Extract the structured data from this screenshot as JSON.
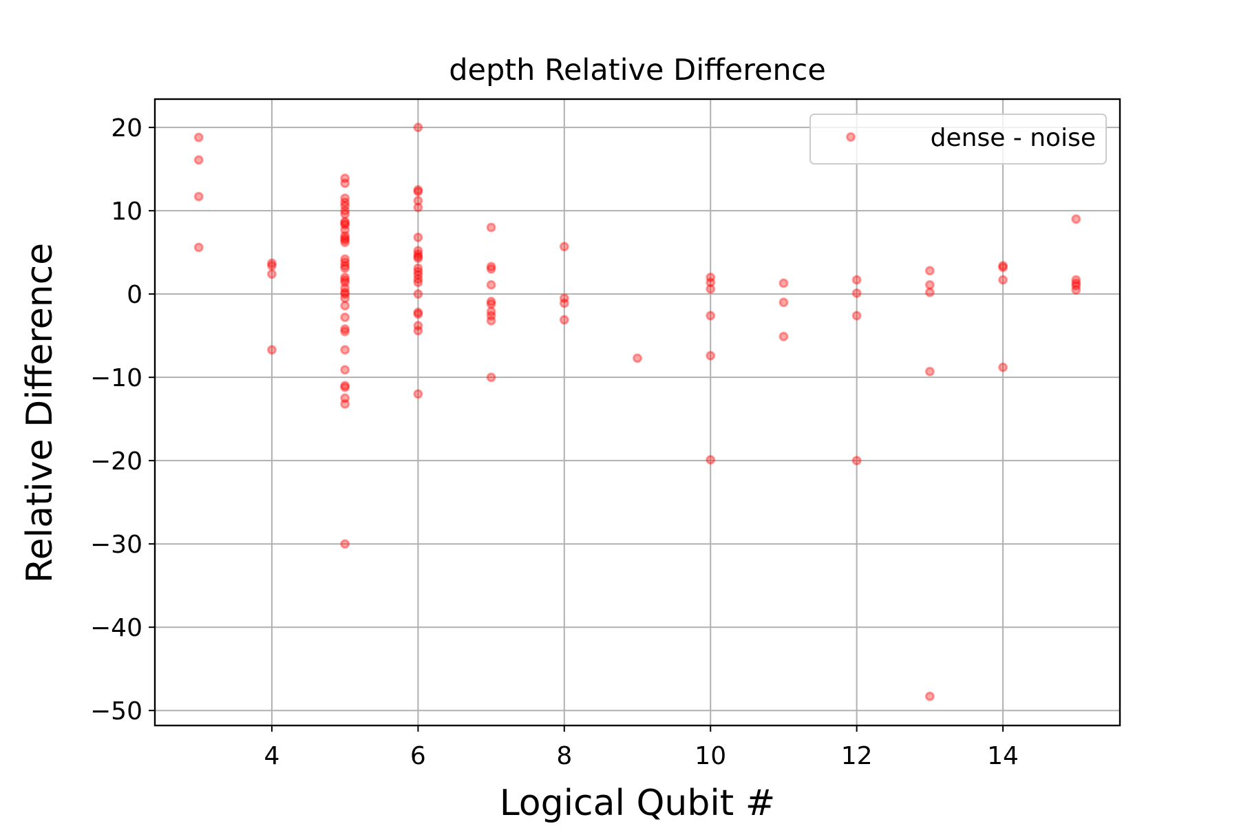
{
  "chart_data": {
    "type": "scatter",
    "title": "depth Relative Difference",
    "xlabel": "Logical Qubit #",
    "ylabel": "Relative Difference",
    "xlim": [
      2.4,
      15.6
    ],
    "ylim": [
      -51.8,
      23.4
    ],
    "xticks": [
      4,
      6,
      8,
      10,
      12,
      14
    ],
    "xtick_labels": [
      "4",
      "6",
      "8",
      "10",
      "12",
      "14"
    ],
    "yticks": [
      20,
      10,
      0,
      -10,
      -20,
      -30,
      -40,
      -50
    ],
    "ytick_labels": [
      "20",
      "10",
      "0",
      "−10",
      "−20",
      "−30",
      "−40",
      "−50"
    ],
    "grid": true,
    "legend_position": "top-right",
    "series": [
      {
        "name": "dense - noise",
        "color": "#ff0000",
        "marker": "circle",
        "alpha": 0.35,
        "points": [
          [
            3,
            18.8
          ],
          [
            3,
            16.1
          ],
          [
            3,
            11.7
          ],
          [
            3,
            5.6
          ],
          [
            4,
            3.7
          ],
          [
            4,
            3.4
          ],
          [
            4,
            2.4
          ],
          [
            4,
            -6.7
          ],
          [
            5,
            13.9
          ],
          [
            5,
            13.3
          ],
          [
            5,
            11.5
          ],
          [
            5,
            11.0
          ],
          [
            5,
            10.6
          ],
          [
            5,
            10.0
          ],
          [
            5,
            9.6
          ],
          [
            5,
            8.7
          ],
          [
            5,
            8.5
          ],
          [
            5,
            8.3
          ],
          [
            5,
            7.7
          ],
          [
            5,
            7.0
          ],
          [
            5,
            6.7
          ],
          [
            5,
            6.5
          ],
          [
            5,
            6.2
          ],
          [
            5,
            4.2
          ],
          [
            5,
            3.8
          ],
          [
            5,
            3.4
          ],
          [
            5,
            3.1
          ],
          [
            5,
            2.0
          ],
          [
            5,
            1.7
          ],
          [
            5,
            1.4
          ],
          [
            5,
            0.7
          ],
          [
            5,
            0.2
          ],
          [
            5,
            0.0
          ],
          [
            5,
            -0.5
          ],
          [
            5,
            -1.4
          ],
          [
            5,
            -2.8
          ],
          [
            5,
            -4.2
          ],
          [
            5,
            -4.5
          ],
          [
            5,
            -6.7
          ],
          [
            5,
            -9.1
          ],
          [
            5,
            -11.0
          ],
          [
            5,
            -11.2
          ],
          [
            5,
            -12.5
          ],
          [
            5,
            -13.2
          ],
          [
            5,
            -30.0
          ],
          [
            6,
            20.0
          ],
          [
            6,
            12.5
          ],
          [
            6,
            12.3
          ],
          [
            6,
            11.2
          ],
          [
            6,
            10.4
          ],
          [
            6,
            6.8
          ],
          [
            6,
            5.2
          ],
          [
            6,
            4.8
          ],
          [
            6,
            4.5
          ],
          [
            6,
            4.3
          ],
          [
            6,
            3.1
          ],
          [
            6,
            2.7
          ],
          [
            6,
            2.3
          ],
          [
            6,
            1.8
          ],
          [
            6,
            1.4
          ],
          [
            6,
            0.0
          ],
          [
            6,
            -2.2
          ],
          [
            6,
            -2.4
          ],
          [
            6,
            -3.8
          ],
          [
            6,
            -4.4
          ],
          [
            6,
            -12.0
          ],
          [
            7,
            8.0
          ],
          [
            7,
            3.3
          ],
          [
            7,
            3.0
          ],
          [
            7,
            1.1
          ],
          [
            7,
            -0.9
          ],
          [
            7,
            -1.2
          ],
          [
            7,
            -2.1
          ],
          [
            7,
            -2.6
          ],
          [
            7,
            -3.2
          ],
          [
            7,
            -10.0
          ],
          [
            8,
            5.7
          ],
          [
            8,
            -0.5
          ],
          [
            8,
            -1.1
          ],
          [
            8,
            -3.1
          ],
          [
            9,
            -7.7
          ],
          [
            10,
            2.0
          ],
          [
            10,
            1.4
          ],
          [
            10,
            0.6
          ],
          [
            10,
            -2.6
          ],
          [
            10,
            -7.4
          ],
          [
            10,
            -19.9
          ],
          [
            11,
            1.3
          ],
          [
            11,
            -1.0
          ],
          [
            11,
            -5.1
          ],
          [
            12,
            1.7
          ],
          [
            12,
            0.1
          ],
          [
            12,
            -2.6
          ],
          [
            12,
            -20.0
          ],
          [
            13,
            2.8
          ],
          [
            13,
            1.1
          ],
          [
            13,
            0.2
          ],
          [
            13,
            -9.3
          ],
          [
            13,
            -48.3
          ],
          [
            14,
            3.4
          ],
          [
            14,
            3.2
          ],
          [
            14,
            1.7
          ],
          [
            14,
            -8.8
          ],
          [
            15,
            9.0
          ],
          [
            15,
            1.7
          ],
          [
            15,
            1.3
          ],
          [
            15,
            1.0
          ],
          [
            15,
            0.5
          ]
        ]
      }
    ]
  }
}
